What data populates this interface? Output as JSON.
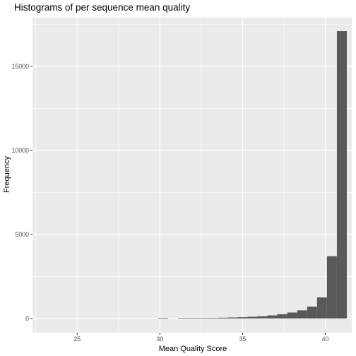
{
  "chart_data": {
    "type": "bar",
    "title": "Histograms of per sequence mean quality",
    "xlabel": "Mean Quality Score",
    "ylabel": "Frequency",
    "xlim": [
      22.3,
      41.6
    ],
    "ylim": [
      -850,
      17900
    ],
    "x_ticks": [
      25,
      30,
      35,
      40
    ],
    "y_ticks": [
      0,
      5000,
      10000,
      15000
    ],
    "x_tick_labels": [
      "25",
      "30",
      "35",
      "40"
    ],
    "y_tick_labels": [
      "0",
      "5000",
      "10000",
      "15000"
    ],
    "bin_width": 0.6,
    "bins": [
      {
        "x": 30.2,
        "count": 30
      },
      {
        "x": 31.4,
        "count": 15
      },
      {
        "x": 32.0,
        "count": 20
      },
      {
        "x": 32.6,
        "count": 25
      },
      {
        "x": 33.2,
        "count": 30
      },
      {
        "x": 33.8,
        "count": 40
      },
      {
        "x": 34.4,
        "count": 55
      },
      {
        "x": 35.0,
        "count": 70
      },
      {
        "x": 35.6,
        "count": 100
      },
      {
        "x": 36.2,
        "count": 130
      },
      {
        "x": 36.8,
        "count": 180
      },
      {
        "x": 37.4,
        "count": 250
      },
      {
        "x": 38.0,
        "count": 350
      },
      {
        "x": 38.6,
        "count": 480
      },
      {
        "x": 39.2,
        "count": 700
      },
      {
        "x": 39.8,
        "count": 1250
      },
      {
        "x": 40.4,
        "count": 3700
      },
      {
        "x": 41.0,
        "count": 17100
      }
    ],
    "colors": {
      "panel": "#ebebeb",
      "grid_major": "#ffffff",
      "bar": "#595959",
      "tick": "#333333"
    }
  }
}
